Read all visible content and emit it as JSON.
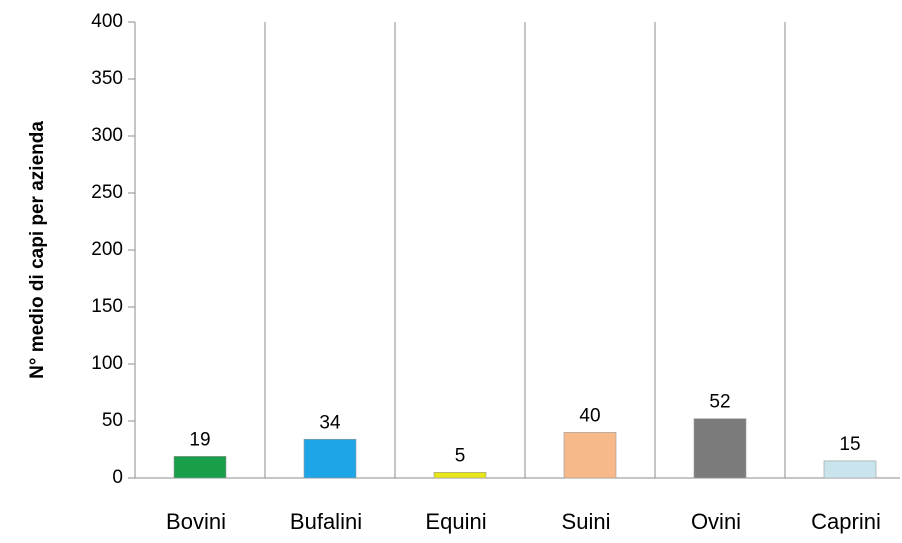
{
  "chart_data": {
    "type": "bar",
    "y_label": "N° medio di capi per azienda",
    "categories": [
      "Bovini",
      "Bufalini",
      "Equini",
      "Suini",
      "Ovini",
      "Caprini"
    ],
    "values": [
      19,
      34,
      5,
      40,
      52,
      15
    ],
    "colors": [
      "#1a9e4a",
      "#1ea5e8",
      "#e6e61a",
      "#f8b98a",
      "#7b7b7b",
      "#c9e4ec"
    ],
    "ylim": [
      0,
      400
    ],
    "yticks": [
      0,
      50,
      100,
      150,
      200,
      250,
      300,
      350,
      400
    ],
    "grid": true
  }
}
